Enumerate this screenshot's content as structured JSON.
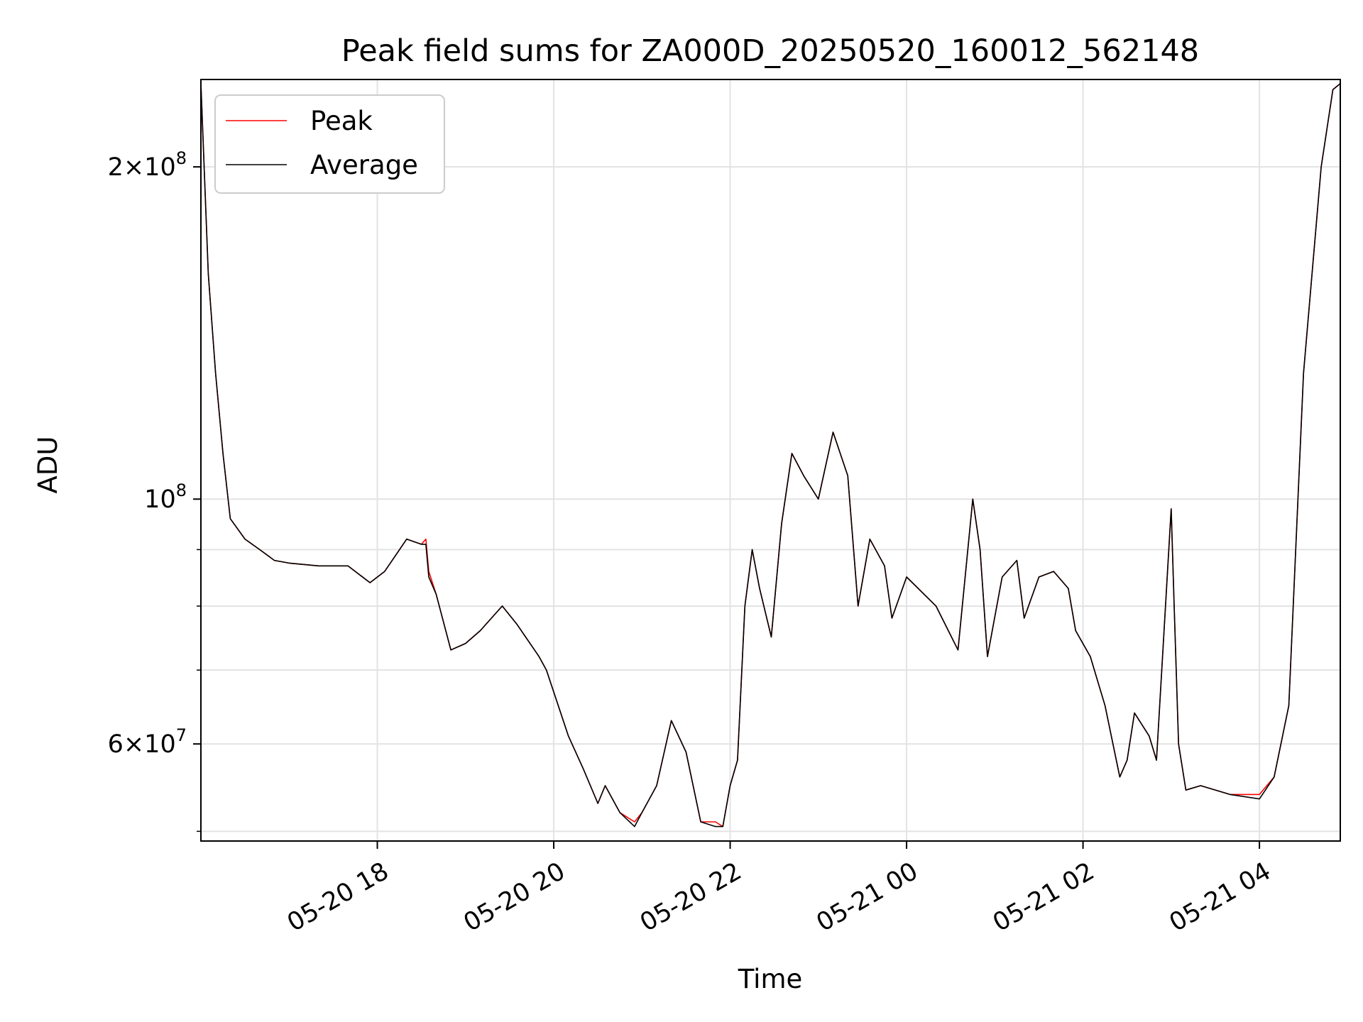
{
  "chart_data": {
    "type": "line",
    "title": "Peak field sums for ZA000D_20250520_160012_562148",
    "xlabel": "Time",
    "ylabel": "ADU",
    "yscale": "log",
    "xlim": [
      "2025-05-20 16:00",
      "2025-05-21 04:55"
    ],
    "ylim": [
      49000000.0,
      240000000.0
    ],
    "grid": true,
    "legend_position": "upper left",
    "x_ticks": [
      {
        "at": "2025-05-20 18:00",
        "label": "05-20 18"
      },
      {
        "at": "2025-05-20 20:00",
        "label": "05-20 20"
      },
      {
        "at": "2025-05-20 22:00",
        "label": "05-20 22"
      },
      {
        "at": "2025-05-21 00:00",
        "label": "05-21 00"
      },
      {
        "at": "2025-05-21 02:00",
        "label": "05-21 02"
      },
      {
        "at": "2025-05-21 04:00",
        "label": "05-21 04"
      }
    ],
    "y_major_ticks": [
      {
        "value": 60000000,
        "mantissa": "6",
        "exponent": "7"
      },
      {
        "value": 100000000,
        "mantissa": "",
        "exponent": "8"
      },
      {
        "value": 200000000,
        "mantissa": "2",
        "exponent": "8"
      }
    ],
    "y_minor_ticks": [
      50000000,
      70000000,
      80000000,
      90000000
    ],
    "series": [
      {
        "name": "Peak",
        "color": "#ff0000",
        "x": [
          "2025-05-20 16:00",
          "2025-05-20 16:05",
          "2025-05-20 16:10",
          "2025-05-20 16:15",
          "2025-05-20 16:20",
          "2025-05-20 16:30",
          "2025-05-20 16:40",
          "2025-05-20 16:50",
          "2025-05-20 17:00",
          "2025-05-20 17:20",
          "2025-05-20 17:40",
          "2025-05-20 17:55",
          "2025-05-20 18:05",
          "2025-05-20 18:20",
          "2025-05-20 18:30",
          "2025-05-20 18:33",
          "2025-05-20 18:35",
          "2025-05-20 18:40",
          "2025-05-20 18:50",
          "2025-05-20 19:00",
          "2025-05-20 19:10",
          "2025-05-20 19:25",
          "2025-05-20 19:35",
          "2025-05-20 19:50",
          "2025-05-20 19:55",
          "2025-05-20 20:10",
          "2025-05-20 20:20",
          "2025-05-20 20:30",
          "2025-05-20 20:35",
          "2025-05-20 20:45",
          "2025-05-20 20:55",
          "2025-05-20 21:00",
          "2025-05-20 21:10",
          "2025-05-20 21:20",
          "2025-05-20 21:30",
          "2025-05-20 21:40",
          "2025-05-20 21:50",
          "2025-05-20 21:55",
          "2025-05-20 22:00",
          "2025-05-20 22:05",
          "2025-05-20 22:10",
          "2025-05-20 22:15",
          "2025-05-20 22:20",
          "2025-05-20 22:28",
          "2025-05-20 22:35",
          "2025-05-20 22:42",
          "2025-05-20 22:50",
          "2025-05-20 23:00",
          "2025-05-20 23:10",
          "2025-05-20 23:20",
          "2025-05-20 23:27",
          "2025-05-20 23:35",
          "2025-05-20 23:45",
          "2025-05-20 23:50",
          "2025-05-21 00:00",
          "2025-05-21 00:20",
          "2025-05-21 00:35",
          "2025-05-21 00:45",
          "2025-05-21 00:50",
          "2025-05-21 00:55",
          "2025-05-21 01:05",
          "2025-05-21 01:15",
          "2025-05-21 01:20",
          "2025-05-21 01:30",
          "2025-05-21 01:40",
          "2025-05-21 01:50",
          "2025-05-21 01:55",
          "2025-05-21 02:05",
          "2025-05-21 02:15",
          "2025-05-21 02:25",
          "2025-05-21 02:30",
          "2025-05-21 02:35",
          "2025-05-21 02:45",
          "2025-05-21 02:50",
          "2025-05-21 03:00",
          "2025-05-21 03:02",
          "2025-05-21 03:05",
          "2025-05-21 03:10",
          "2025-05-21 03:20",
          "2025-05-21 03:40",
          "2025-05-21 04:00",
          "2025-05-21 04:10",
          "2025-05-21 04:20",
          "2025-05-21 04:30",
          "2025-05-21 04:42",
          "2025-05-21 04:50",
          "2025-05-21 04:55"
        ],
        "y": [
          238000000,
          160000000,
          130000000,
          110000000,
          96000000,
          92000000,
          90000000,
          88000000,
          87500000,
          87000000,
          87000000,
          84000000,
          86000000,
          92000000,
          91000000,
          92000000,
          86000000,
          82000000,
          73000000,
          74000000,
          76000000,
          80000000,
          77000000,
          72000000,
          70000000,
          61000000,
          57000000,
          53000000,
          55000000,
          52000000,
          51000000,
          52000000,
          55000000,
          63000000,
          59000000,
          51000000,
          51000000,
          50500000,
          55000000,
          58000000,
          80000000,
          90000000,
          83000000,
          75000000,
          95000000,
          110000000,
          105000000,
          100000000,
          115000000,
          105000000,
          80000000,
          92000000,
          87000000,
          78000000,
          85000000,
          80000000,
          73000000,
          100000000,
          90000000,
          72000000,
          85000000,
          88000000,
          78000000,
          85000000,
          86000000,
          83000000,
          76000000,
          72000000,
          65000000,
          56000000,
          58000000,
          64000000,
          61000000,
          58000000,
          98000000,
          80000000,
          60000000,
          54500000,
          55000000,
          54000000,
          54000000,
          56000000,
          65000000,
          130000000,
          200000000,
          235000000,
          238000000
        ]
      },
      {
        "name": "Average",
        "color": "#000000",
        "x": [
          "2025-05-20 16:00",
          "2025-05-20 16:05",
          "2025-05-20 16:10",
          "2025-05-20 16:15",
          "2025-05-20 16:20",
          "2025-05-20 16:30",
          "2025-05-20 16:40",
          "2025-05-20 16:50",
          "2025-05-20 17:00",
          "2025-05-20 17:20",
          "2025-05-20 17:40",
          "2025-05-20 17:55",
          "2025-05-20 18:05",
          "2025-05-20 18:20",
          "2025-05-20 18:30",
          "2025-05-20 18:33",
          "2025-05-20 18:35",
          "2025-05-20 18:40",
          "2025-05-20 18:50",
          "2025-05-20 19:00",
          "2025-05-20 19:10",
          "2025-05-20 19:25",
          "2025-05-20 19:35",
          "2025-05-20 19:50",
          "2025-05-20 19:55",
          "2025-05-20 20:10",
          "2025-05-20 20:20",
          "2025-05-20 20:30",
          "2025-05-20 20:35",
          "2025-05-20 20:45",
          "2025-05-20 20:55",
          "2025-05-20 21:00",
          "2025-05-20 21:10",
          "2025-05-20 21:20",
          "2025-05-20 21:30",
          "2025-05-20 21:40",
          "2025-05-20 21:50",
          "2025-05-20 21:55",
          "2025-05-20 22:00",
          "2025-05-20 22:05",
          "2025-05-20 22:10",
          "2025-05-20 22:15",
          "2025-05-20 22:20",
          "2025-05-20 22:28",
          "2025-05-20 22:35",
          "2025-05-20 22:42",
          "2025-05-20 22:50",
          "2025-05-20 23:00",
          "2025-05-20 23:10",
          "2025-05-20 23:20",
          "2025-05-20 23:27",
          "2025-05-20 23:35",
          "2025-05-20 23:45",
          "2025-05-20 23:50",
          "2025-05-21 00:00",
          "2025-05-21 00:20",
          "2025-05-21 00:35",
          "2025-05-21 00:45",
          "2025-05-21 00:50",
          "2025-05-21 00:55",
          "2025-05-21 01:05",
          "2025-05-21 01:15",
          "2025-05-21 01:20",
          "2025-05-21 01:30",
          "2025-05-21 01:40",
          "2025-05-21 01:50",
          "2025-05-21 01:55",
          "2025-05-21 02:05",
          "2025-05-21 02:15",
          "2025-05-21 02:25",
          "2025-05-21 02:30",
          "2025-05-21 02:35",
          "2025-05-21 02:45",
          "2025-05-21 02:50",
          "2025-05-21 03:00",
          "2025-05-21 03:02",
          "2025-05-21 03:05",
          "2025-05-21 03:10",
          "2025-05-21 03:20",
          "2025-05-21 03:40",
          "2025-05-21 04:00",
          "2025-05-21 04:10",
          "2025-05-21 04:20",
          "2025-05-21 04:30",
          "2025-05-21 04:42",
          "2025-05-21 04:50",
          "2025-05-21 04:55"
        ],
        "y": [
          238000000,
          160000000,
          130000000,
          110000000,
          96000000,
          92000000,
          90000000,
          88000000,
          87500000,
          87000000,
          87000000,
          84000000,
          86000000,
          92000000,
          91000000,
          91000000,
          85000000,
          82000000,
          73000000,
          74000000,
          76000000,
          80000000,
          77000000,
          72000000,
          70000000,
          61000000,
          57000000,
          53000000,
          55000000,
          52000000,
          50500000,
          52000000,
          55000000,
          63000000,
          59000000,
          51000000,
          50500000,
          50500000,
          55000000,
          58000000,
          80000000,
          90000000,
          83000000,
          75000000,
          95000000,
          110000000,
          105000000,
          100000000,
          115000000,
          105000000,
          80000000,
          92000000,
          87000000,
          78000000,
          85000000,
          80000000,
          73000000,
          100000000,
          90000000,
          72000000,
          85000000,
          88000000,
          78000000,
          85000000,
          86000000,
          83000000,
          76000000,
          72000000,
          65000000,
          56000000,
          58000000,
          64000000,
          61000000,
          58000000,
          98000000,
          80000000,
          60000000,
          54500000,
          55000000,
          54000000,
          53500000,
          56000000,
          65000000,
          130000000,
          200000000,
          235000000,
          238000000
        ]
      }
    ]
  }
}
